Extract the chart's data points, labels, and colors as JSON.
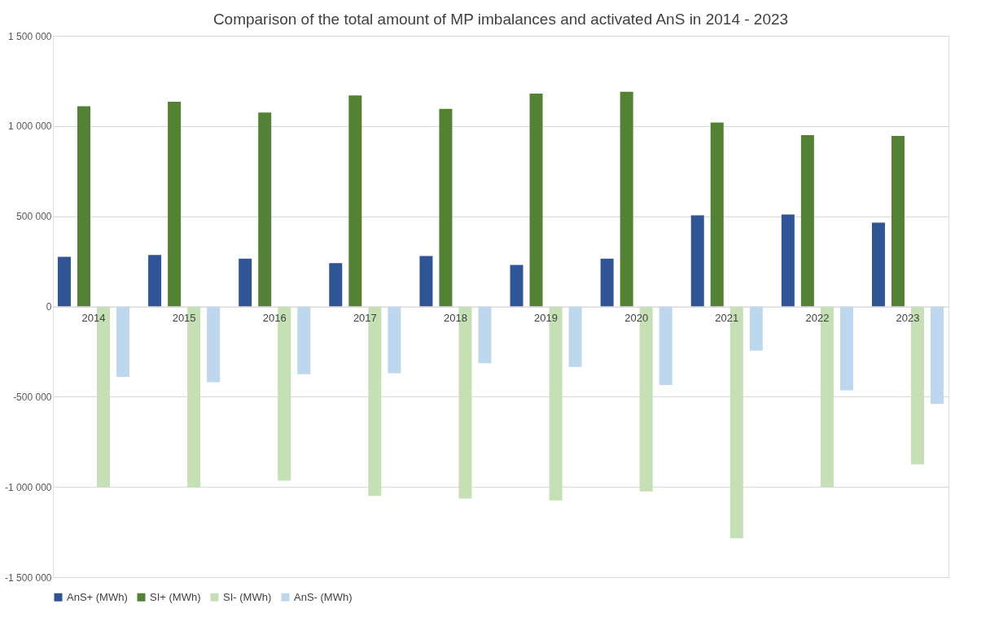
{
  "chart_data": {
    "type": "bar",
    "title": "Comparison of the total amount of MP imbalances and activated AnS in 2014 - 2023",
    "categories": [
      "2014",
      "2015",
      "2016",
      "2017",
      "2018",
      "2019",
      "2020",
      "2021",
      "2022",
      "2023"
    ],
    "series": [
      {
        "name": "AnS+ (MWh)",
        "color": "#2f5597",
        "values": [
          275000,
          285000,
          265000,
          240000,
          280000,
          230000,
          265000,
          505000,
          510000,
          465000
        ]
      },
      {
        "name": "SI+ (MWh)",
        "color": "#548235",
        "values": [
          1110000,
          1135000,
          1075000,
          1170000,
          1095000,
          1180000,
          1190000,
          1020000,
          950000,
          945000
        ]
      },
      {
        "name": "SI- (MWh)",
        "color": "#c5e0b4",
        "values": [
          -1000000,
          -1000000,
          -965000,
          -1050000,
          -1065000,
          -1075000,
          -1025000,
          -1285000,
          -1000000,
          -875000
        ]
      },
      {
        "name": "AnS- (MWh)",
        "color": "#bdd7ee",
        "values": [
          -390000,
          -420000,
          -375000,
          -370000,
          -315000,
          -335000,
          -435000,
          -245000,
          -465000,
          -540000
        ]
      }
    ],
    "ylim": [
      -1500000,
      1500000
    ],
    "yticks": [
      {
        "value": -1500000,
        "label": "-1 500 000"
      },
      {
        "value": -1000000,
        "label": "-1 000 000"
      },
      {
        "value": -500000,
        "label": "-500 000"
      },
      {
        "value": 0,
        "label": "0"
      },
      {
        "value": 500000,
        "label": "500 000"
      },
      {
        "value": 1000000,
        "label": "1 000 000"
      },
      {
        "value": 1500000,
        "label": "1 500 000"
      }
    ],
    "grid": "y",
    "legend": "bottom"
  }
}
